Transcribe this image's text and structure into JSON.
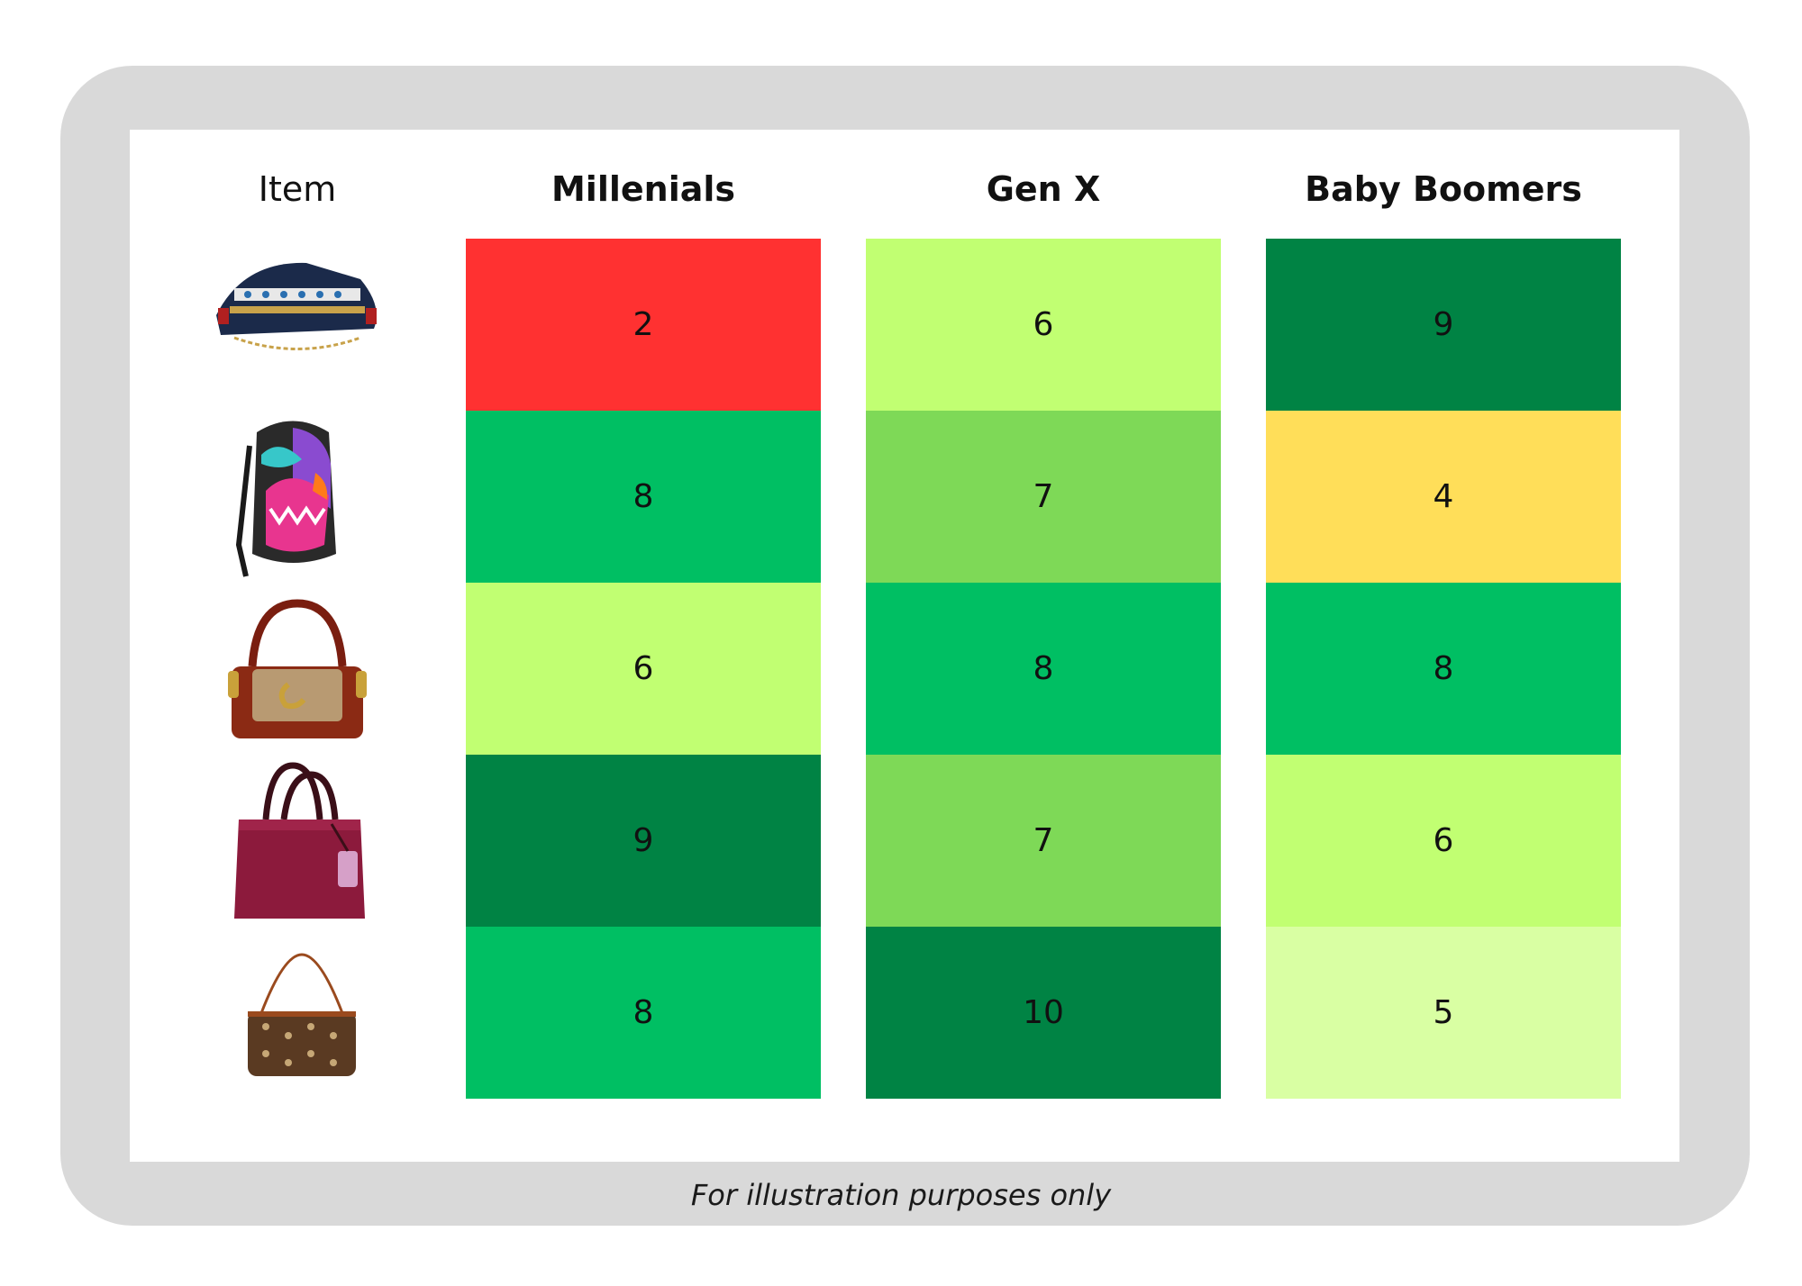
{
  "chart_data": {
    "type": "heatmap",
    "row_header": "Item",
    "columns": [
      "Millenials",
      "Gen X",
      "Baby Boomers"
    ],
    "rows": [
      {
        "item": "cruise-ship-bag-image",
        "values": [
          2,
          6,
          9
        ]
      },
      {
        "item": "shark-backpack-image",
        "values": [
          8,
          7,
          4
        ]
      },
      {
        "item": "brown-tabby-shoulder-bag-image",
        "values": [
          6,
          8,
          8
        ]
      },
      {
        "item": "burgundy-satchel-image",
        "values": [
          9,
          7,
          6
        ]
      },
      {
        "item": "monogram-pochette-image",
        "values": [
          8,
          10,
          5
        ]
      }
    ],
    "color_scale": {
      "2": "#ff3131",
      "4": "#ffde59",
      "5": "#d9ffa3",
      "6": "#c1ff72",
      "7": "#7ed957",
      "8": "#00bf63",
      "9": "#008344",
      "10": "#008344"
    }
  },
  "footnote": "For illustration purposes only",
  "colors": {
    "frame": "#d9d9d9",
    "panel": "#ffffff"
  }
}
